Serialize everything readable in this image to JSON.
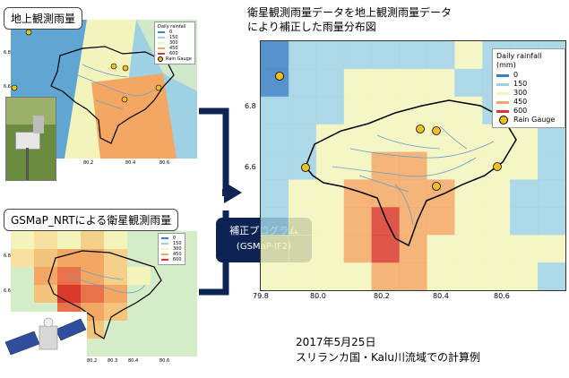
{
  "callouts": {
    "ground": "地上観測雨量",
    "satellite": "GSMaP_NRTによる衛星観測雨量"
  },
  "main_title": {
    "line1": "衛星観測雨量データを地上観測雨量データ",
    "line2": "により補正した雨量分布図"
  },
  "program": {
    "line1": "補正プログラム",
    "line2": "(GSMaP-IF2)"
  },
  "legend_main": {
    "title": "Daily rainfall (mm)",
    "items": [
      {
        "label": "0",
        "color": "#3b7fc4"
      },
      {
        "label": "150",
        "color": "#9fd1e4"
      },
      {
        "label": "300",
        "color": "#f3f4bb"
      },
      {
        "label": "450",
        "color": "#f3a763"
      },
      {
        "label": "600",
        "color": "#d93a2b"
      }
    ],
    "gauge": "Rain Gauge"
  },
  "legend_small_top": {
    "title": "Daily rainfall",
    "items": [
      "0",
      "150",
      "300",
      "450",
      "600"
    ],
    "gauge": "Rain Gauge"
  },
  "legend_small_bottom": {
    "items": [
      "0",
      "150",
      "300",
      "450",
      "600"
    ]
  },
  "axes_main": {
    "x_ticks": [
      "79.8",
      "80.0",
      "80.2",
      "80.4",
      "80.6"
    ],
    "y_ticks": [
      "6.8",
      "6.6"
    ]
  },
  "axes_top": {
    "x_ticks": [
      "80.2",
      "80.4",
      "80.6"
    ],
    "y_ticks": [
      "6.8",
      "6.6"
    ]
  },
  "axes_bottom": {
    "x_ticks": [
      "80.2",
      "80.3",
      "80.4",
      "80.6"
    ],
    "y_ticks": [
      "6.8",
      "6.6"
    ]
  },
  "footer": {
    "date": "2017年5月25日",
    "location": "スリランカ国・Kalu川流域での計算例"
  },
  "colors": {
    "program_bg": "#0d2354",
    "arrow": "#0d2354",
    "gauge": "#f2c01e"
  },
  "chart_data": {
    "type": "heatmap",
    "title": "衛星観測雨量データを地上観測雨量データにより補正した雨量分布図",
    "xlabel": "",
    "ylabel": "",
    "x_ticks": [
      79.8,
      80.0,
      80.2,
      80.4,
      80.6
    ],
    "y_ticks": [
      6.8,
      6.6
    ],
    "scale_mm": [
      0,
      150,
      300,
      450,
      600
    ],
    "grid_rows": [
      [
        0,
        1,
        1,
        1,
        1,
        1,
        1,
        2,
        1,
        1,
        1
      ],
      [
        0,
        1,
        1,
        2,
        2,
        2,
        2,
        1,
        1,
        1,
        1
      ],
      [
        1,
        1,
        1,
        2,
        2,
        2,
        2,
        2,
        1,
        1,
        1
      ],
      [
        1,
        1,
        2,
        2,
        2,
        2,
        2,
        2,
        2,
        2,
        1
      ],
      [
        1,
        1,
        2,
        2,
        3,
        3,
        2,
        2,
        2,
        2,
        1
      ],
      [
        1,
        2,
        2,
        3,
        3,
        3,
        3,
        2,
        2,
        1,
        1
      ],
      [
        1,
        2,
        2,
        3,
        4,
        3,
        3,
        2,
        2,
        1,
        1
      ],
      [
        2,
        2,
        2,
        3,
        4,
        3,
        2,
        2,
        2,
        2,
        2
      ],
      [
        2,
        2,
        2,
        2,
        3,
        3,
        2,
        2,
        2,
        2,
        1
      ]
    ]
  }
}
